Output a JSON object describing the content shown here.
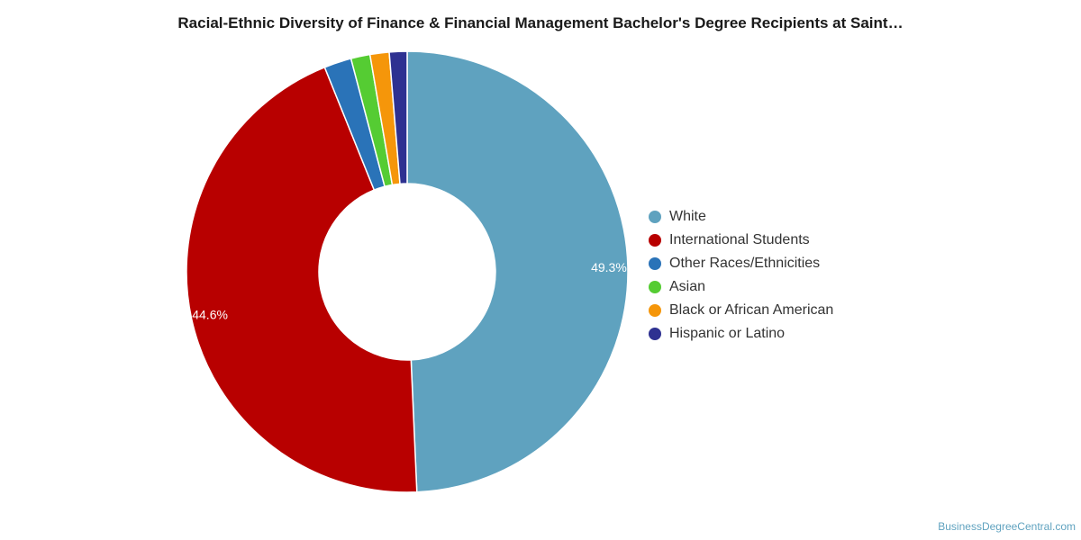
{
  "title": "Racial-Ethnic Diversity of Finance & Financial Management Bachelor's Degree Recipients at Saint…",
  "credit": "BusinessDegreeCentral.com",
  "chart_data": {
    "type": "pie",
    "variant": "donut",
    "legend_position": "right",
    "slices": [
      {
        "label": "White",
        "value": 49.3,
        "display": "49.3%",
        "color": "#5fa2bf"
      },
      {
        "label": "International Students",
        "value": 44.6,
        "display": "44.6%",
        "color": "#b80000"
      },
      {
        "label": "Other Races/Ethnicities",
        "value": 2.0,
        "display": "",
        "color": "#2a73b8"
      },
      {
        "label": "Asian",
        "value": 1.4,
        "display": "",
        "color": "#55cc33"
      },
      {
        "label": "Black or African American",
        "value": 1.4,
        "display": "",
        "color": "#f5960a"
      },
      {
        "label": "Hispanic or Latino",
        "value": 1.3,
        "display": "",
        "color": "#2e3191"
      }
    ]
  }
}
